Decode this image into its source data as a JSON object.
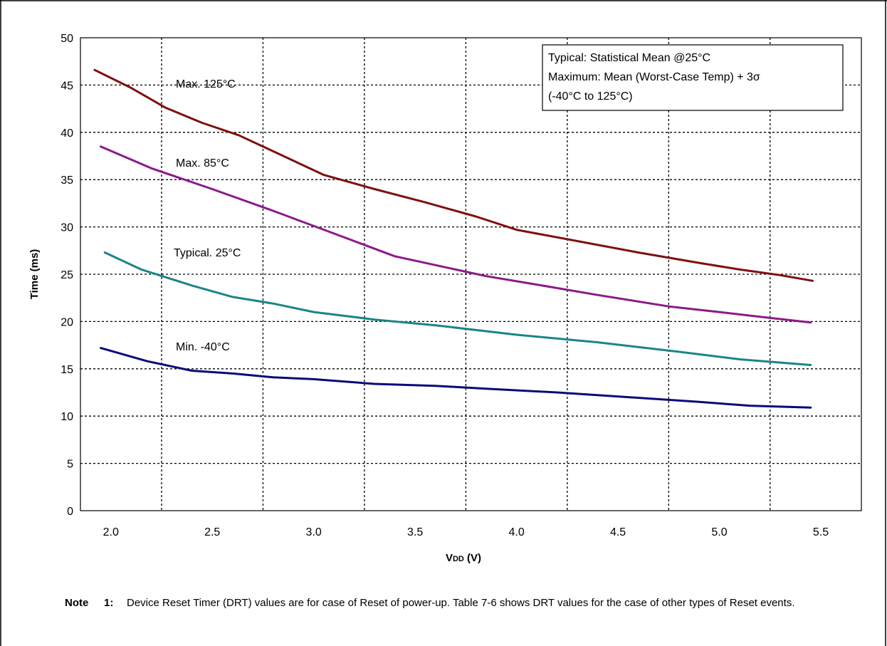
{
  "chart_data": {
    "type": "line",
    "xlabel_main": "V",
    "xlabel_sub": "DD",
    "xlabel_unit": " (V)",
    "ylabel": "Time (ms)",
    "xlim": [
      1.85,
      5.7
    ],
    "ylim": [
      0,
      50
    ],
    "x_ticks": [
      "2.0",
      "2.5",
      "3.0",
      "3.5",
      "4.0",
      "4.5",
      "5.0",
      "5.5"
    ],
    "y_ticks": [
      "0",
      "5",
      "10",
      "15",
      "20",
      "25",
      "30",
      "35",
      "40",
      "45",
      "50"
    ],
    "grid": true,
    "series": [
      {
        "name": "Max. 125°C",
        "color": "#7f1010",
        "x": [
          1.92,
          2.1,
          2.27,
          2.45,
          2.63,
          2.82,
          3.05,
          3.3,
          3.55,
          3.8,
          4.0,
          4.3,
          4.6,
          4.9,
          5.1,
          5.3,
          5.46
        ],
        "y": [
          46.6,
          44.7,
          42.6,
          41.0,
          39.7,
          37.8,
          35.5,
          34.0,
          32.6,
          31.1,
          29.7,
          28.5,
          27.3,
          26.2,
          25.5,
          24.9,
          24.3
        ]
      },
      {
        "name": "Max. 85°C",
        "color": "#8b1a8b",
        "x": [
          1.95,
          2.2,
          2.5,
          2.8,
          3.1,
          3.4,
          3.7,
          3.85,
          4.1,
          4.4,
          4.75,
          5.0,
          5.2,
          5.45
        ],
        "y": [
          38.5,
          36.2,
          34.0,
          31.7,
          29.3,
          26.9,
          25.5,
          24.8,
          23.9,
          22.8,
          21.6,
          21.0,
          20.5,
          19.9
        ]
      },
      {
        "name": "Typical. 25°C",
        "color": "#1b8585",
        "x": [
          1.97,
          2.15,
          2.4,
          2.6,
          2.8,
          3.0,
          3.3,
          3.6,
          4.0,
          4.4,
          4.8,
          5.1,
          5.45
        ],
        "y": [
          27.3,
          25.5,
          23.8,
          22.6,
          21.9,
          21.0,
          20.2,
          19.6,
          18.6,
          17.8,
          16.8,
          16.0,
          15.4
        ]
      },
      {
        "name": "Min. -40°C",
        "color": "#0a0a78",
        "x": [
          1.95,
          2.18,
          2.4,
          2.6,
          2.8,
          3.0,
          3.3,
          3.6,
          3.85,
          4.2,
          4.55,
          4.9,
          5.15,
          5.45
        ],
        "y": [
          17.2,
          15.8,
          14.8,
          14.5,
          14.1,
          13.9,
          13.4,
          13.2,
          12.9,
          12.5,
          12.0,
          11.5,
          11.1,
          10.9
        ]
      }
    ],
    "annotations": [
      "Max. 125°C",
      "Max. 85°C",
      "Typical. 25°C",
      "Min. -40°C"
    ],
    "legend_box": {
      "line1": "Typical: Statistical Mean @25°C",
      "line2": "Maximum: Mean (Worst-Case Temp) + 3σ",
      "line3": "(-40°C to 125°C)",
      "position": "top-right"
    }
  },
  "note": {
    "label": "Note",
    "number": "1:",
    "text": "Device Reset Timer (DRT) values are for case of Reset of power-up. Table 7-6 shows DRT values for the case of other types of Reset events."
  }
}
